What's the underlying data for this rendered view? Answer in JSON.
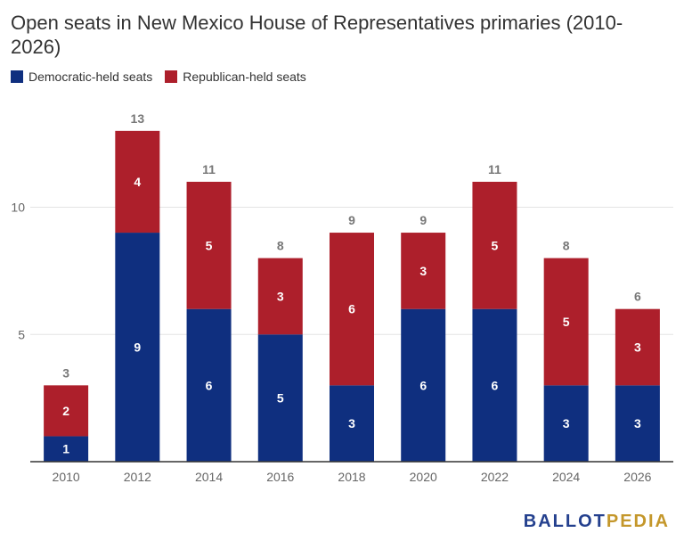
{
  "colors": {
    "dem": "#0f2f7f",
    "rep": "#ad1f2b",
    "grid": "#e3e3e3",
    "axis": "#333333",
    "tick": "#666666",
    "total": "#777777"
  },
  "chart_data": {
    "type": "bar",
    "stacked": true,
    "title": "Open seats in New Mexico House of Representatives primaries (2010-2026)",
    "categories": [
      "2010",
      "2012",
      "2014",
      "2016",
      "2018",
      "2020",
      "2022",
      "2024",
      "2026"
    ],
    "series": [
      {
        "name": "Democratic-held seats",
        "values": [
          1,
          9,
          6,
          5,
          3,
          6,
          6,
          3,
          3
        ]
      },
      {
        "name": "Republican-held seats",
        "values": [
          2,
          4,
          5,
          3,
          6,
          3,
          5,
          5,
          3
        ]
      }
    ],
    "totals": [
      3,
      13,
      11,
      8,
      9,
      9,
      11,
      8,
      6
    ],
    "yticks": [
      5,
      10
    ],
    "ylim": [
      0,
      13
    ],
    "grid": true,
    "legend": "top-left"
  },
  "logo": {
    "part1": "BALLOT",
    "part2": "PEDIA"
  }
}
